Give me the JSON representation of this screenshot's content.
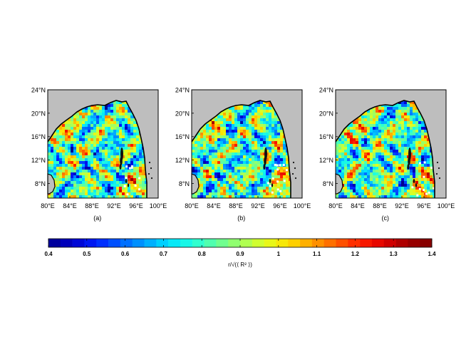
{
  "panels": [
    {
      "id": "a",
      "caption": "(a)"
    },
    {
      "id": "b",
      "caption": "(b)"
    },
    {
      "id": "c",
      "caption": "(c)"
    }
  ],
  "lon_ticks": [
    "80°E",
    "84°E",
    "88°E",
    "92°E",
    "96°E",
    "100°E"
  ],
  "lat_ticks": [
    "24°N",
    "20°N",
    "16°N",
    "12°N",
    "8°N"
  ],
  "lon_range": [
    80,
    100
  ],
  "lat_range": [
    5.5,
    24
  ],
  "colorbar": {
    "ticks": [
      "0.4",
      "0.5",
      "0.6",
      "0.7",
      "0.8",
      "0.9",
      "1",
      "1.1",
      "1.2",
      "1.3",
      "1.4"
    ],
    "range": [
      0.4,
      1.4
    ],
    "label": "r/√(⟨ R² ⟩)",
    "colormap": "jet",
    "colors": [
      "#00008f",
      "#0000c8",
      "#0020ff",
      "#0060ff",
      "#00a0ff",
      "#00e0ff",
      "#20ffdf",
      "#60ff9f",
      "#a0ff60",
      "#e0ff20",
      "#ffe000",
      "#ffa000",
      "#ff6000",
      "#ff2000",
      "#df0000",
      "#9f0000",
      "#800000"
    ]
  },
  "colors": {
    "land": "#bebebe",
    "coast": "#000000",
    "frame": "#000000"
  }
}
